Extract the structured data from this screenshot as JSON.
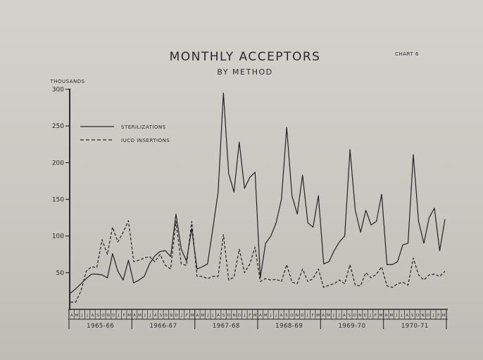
{
  "chart_data": {
    "type": "line",
    "title": "MONTHLY ACCEPTORS",
    "subtitle": "BY METHOD",
    "chart_label": "CHART 6",
    "ylabel": "THOUSANDS",
    "ylim": [
      0,
      300
    ],
    "yticks": [
      "300",
      "250",
      "200",
      "150",
      "100",
      "50"
    ],
    "month_letters": [
      "A",
      "M",
      "J",
      "J",
      "A",
      "S",
      "O",
      "N",
      "D",
      "J",
      "F",
      "M"
    ],
    "fiscal_years": [
      "1965-66",
      "1966-67",
      "1967-68",
      "1968-69",
      "1969-70",
      "1970-71"
    ],
    "legend_placement": "top-left",
    "grid": false,
    "series": [
      {
        "name": "STERILIZATIONS",
        "style": "solid",
        "values": [
          22,
          28,
          35,
          42,
          48,
          48,
          47,
          43,
          76,
          52,
          40,
          67,
          36,
          40,
          45,
          62,
          73,
          79,
          80,
          72,
          130,
          82,
          66,
          110,
          55,
          58,
          62,
          110,
          160,
          295,
          185,
          160,
          228,
          165,
          180,
          187,
          43,
          90,
          100,
          118,
          150,
          248,
          155,
          130,
          183,
          118,
          112,
          155,
          62,
          65,
          80,
          92,
          100,
          218,
          135,
          105,
          135,
          115,
          120,
          157,
          61,
          61,
          65,
          88,
          90,
          211,
          120,
          90,
          125,
          138,
          80,
          123
        ]
      },
      {
        "name": "IUCD INSERTIONS",
        "style": "dashed",
        "values": [
          10,
          10,
          25,
          52,
          58,
          57,
          95,
          75,
          112,
          92,
          105,
          121,
          65,
          67,
          70,
          72,
          65,
          75,
          60,
          55,
          120,
          62,
          60,
          120,
          45,
          45,
          42,
          45,
          45,
          102,
          40,
          44,
          82,
          50,
          62,
          85,
          38,
          42,
          40,
          41,
          38,
          61,
          37,
          35,
          55,
          38,
          42,
          55,
          30,
          33,
          35,
          40,
          35,
          61,
          33,
          32,
          50,
          43,
          48,
          58,
          32,
          30,
          35,
          37,
          33,
          70,
          47,
          40,
          47,
          48,
          45,
          52
        ]
      }
    ]
  }
}
